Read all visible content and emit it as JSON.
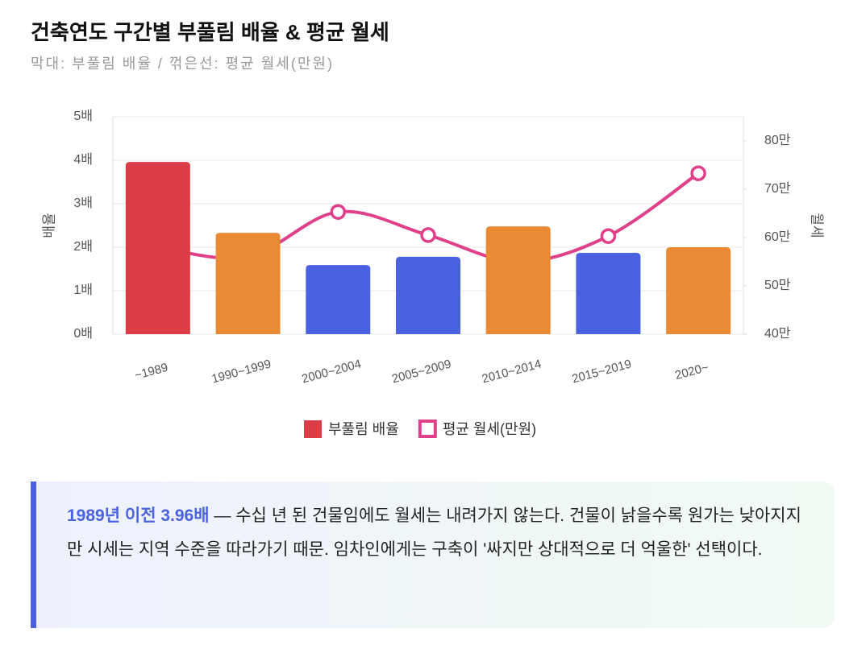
{
  "chart_data": {
    "type": "bar",
    "title": "건축연도 구간별 부풀림 배율 & 평균 월세",
    "subtitle": "막대: 부풀림 배율 / 꺾은선: 평균 월세(만원)",
    "ylabel": "배율",
    "y2label": "월세",
    "categories": [
      "~1989",
      "1990~1999",
      "2000~2004",
      "2005~2009",
      "2010~2014",
      "2015~2019",
      "2020~"
    ],
    "series": [
      {
        "name": "부풀림 배율",
        "type": "bar",
        "color": "#dc3c45",
        "colors": [
          "#dc3c45",
          "#e98a35",
          "#4a62e2",
          "#4a62e2",
          "#e98a35",
          "#4a62e2",
          "#e98a35"
        ],
        "values": [
          3.96,
          2.33,
          1.59,
          1.78,
          2.48,
          1.87,
          2.0
        ]
      },
      {
        "name": "평균 월세(만원)",
        "type": "line",
        "axis": "y2",
        "color": "#e0408a",
        "values": [
          58,
          56,
          65.3,
          60.5,
          55,
          60.3,
          73.3
        ]
      }
    ],
    "ylim": [
      0,
      5
    ],
    "yticks": [
      {
        "value": 0,
        "label": "0배"
      },
      {
        "value": 1,
        "label": "1배"
      },
      {
        "value": 2,
        "label": "2배"
      },
      {
        "value": 3,
        "label": "3배"
      },
      {
        "value": 4,
        "label": "4배"
      },
      {
        "value": 5,
        "label": "5배"
      }
    ],
    "y2lim": [
      40,
      85
    ],
    "y2ticks": [
      {
        "value": 40,
        "label": "40만"
      },
      {
        "value": 50,
        "label": "50만"
      },
      {
        "value": 60,
        "label": "60만"
      },
      {
        "value": 70,
        "label": "70만"
      },
      {
        "value": 80,
        "label": "80만"
      }
    ],
    "grid": true,
    "legend": "bottom"
  },
  "callout": {
    "highlight": "1989년 이전 3.96배",
    "text": " — 수십 년 된 건물임에도 월세는 내려가지 않는다. 건물이 낡을수록 원가는 낮아지지만 시세는 지역 수준을 따라가기 때문. 임차인에게는 구축이 '싸지만 상대적으로 더 억울한' 선택이다."
  }
}
